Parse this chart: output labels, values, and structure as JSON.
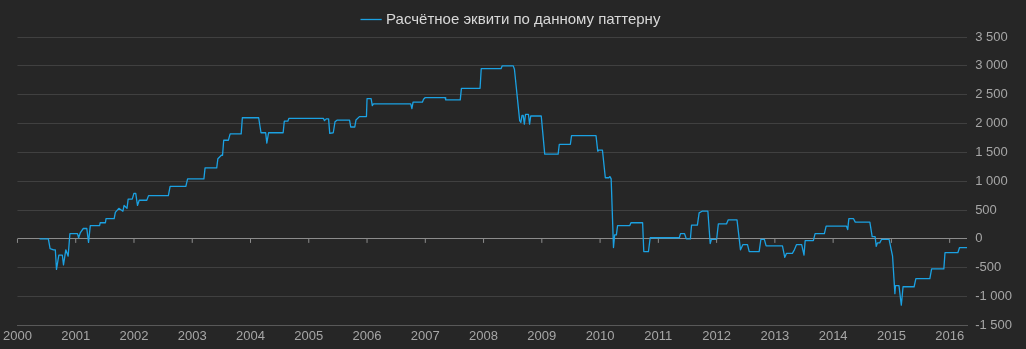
{
  "chart_data": {
    "type": "line",
    "legend": "top",
    "grid": "y",
    "marker": "none",
    "line_style": "solid",
    "xlim": [
      2000,
      2016.3
    ],
    "xticks": [
      2000,
      2001,
      2002,
      2003,
      2004,
      2005,
      2006,
      2007,
      2008,
      2009,
      2010,
      2011,
      2012,
      2013,
      2014,
      2015,
      2016
    ],
    "ylim": [
      -1500,
      3500
    ],
    "yticks": [
      {
        "value": -1500,
        "label": "-1 500"
      },
      {
        "value": -1000,
        "label": "-1 000"
      },
      -500,
      0,
      500,
      {
        "value": 1000,
        "label": "1 000"
      },
      {
        "value": 1500,
        "label": "1 500"
      },
      {
        "value": 2000,
        "label": "2 000"
      },
      {
        "value": 2500,
        "label": "2 500"
      },
      {
        "value": 3000,
        "label": "3 000"
      },
      {
        "value": 3500,
        "label": "3 500"
      }
    ],
    "series": [
      {
        "name": "Расчётное эквити по данному паттерну",
        "color": "#1ba1e2",
        "x": [
          2000.38,
          2000.53,
          2000.56,
          2000.62,
          2000.65,
          2000.67,
          2000.71,
          2000.77,
          2000.79,
          2000.83,
          2000.87,
          2000.9,
          2001.03,
          2001.05,
          2001.08,
          2001.13,
          2001.19,
          2001.22,
          2001.25,
          2001.41,
          2001.42,
          2001.51,
          2001.52,
          2001.66,
          2001.68,
          2001.74,
          2001.81,
          2001.83,
          2001.88,
          2001.9,
          2001.97,
          2002.0,
          2002.03,
          2002.06,
          2002.09,
          2002.22,
          2002.25,
          2002.59,
          2002.62,
          2002.89,
          2002.92,
          2003.2,
          2003.22,
          2003.42,
          2003.44,
          2003.5,
          2003.52,
          2003.54,
          2003.62,
          2003.65,
          2003.84,
          2003.86,
          2004.14,
          2004.18,
          2004.26,
          2004.28,
          2004.31,
          2004.56,
          2004.58,
          2004.64,
          2004.66,
          2005.25,
          2005.27,
          2005.3,
          2005.34,
          2005.36,
          2005.42,
          2005.45,
          2005.49,
          2005.7,
          2005.72,
          2005.79,
          2005.81,
          2005.87,
          2005.99,
          2006.0,
          2006.07,
          2006.09,
          2006.11,
          2006.75,
          2006.77,
          2006.79,
          2006.95,
          2006.97,
          2007.0,
          2007.34,
          2007.35,
          2007.6,
          2007.62,
          2007.94,
          2007.96,
          2008.3,
          2008.32,
          2008.51,
          2008.53,
          2008.62,
          2008.64,
          2008.66,
          2008.68,
          2008.7,
          2008.72,
          2008.77,
          2008.79,
          2008.81,
          2008.99,
          2009.05,
          2009.28,
          2009.3,
          2009.49,
          2009.51,
          2009.93,
          2009.96,
          2009.98,
          2010.04,
          2010.09,
          2010.15,
          2010.17,
          2010.19,
          2010.23,
          2010.25,
          2010.28,
          2010.3,
          2010.51,
          2010.53,
          2010.73,
          2010.75,
          2010.83,
          2010.86,
          2011.36,
          2011.38,
          2011.45,
          2011.48,
          2011.55,
          2011.57,
          2011.67,
          2011.7,
          2011.75,
          2011.85,
          2011.89,
          2011.91,
          2012.0,
          2012.03,
          2012.17,
          2012.2,
          2012.35,
          2012.41,
          2012.45,
          2012.53,
          2012.56,
          2012.73,
          2012.76,
          2012.82,
          2012.85,
          2013.13,
          2013.17,
          2013.2,
          2013.3,
          2013.33,
          2013.37,
          2013.46,
          2013.5,
          2013.52,
          2013.66,
          2013.69,
          2013.85,
          2013.88,
          2014.23,
          2014.25,
          2014.27,
          2014.35,
          2014.38,
          2014.63,
          2014.67,
          2014.72,
          2014.74,
          2014.76,
          2014.8,
          2014.83,
          2014.96,
          2015.02,
          2015.06,
          2015.07,
          2015.13,
          2015.17,
          2015.2,
          2015.39,
          2015.42,
          2015.66,
          2015.69,
          2015.9,
          2015.92,
          2016.14,
          2016.17,
          2016.3
        ],
        "values": [
          0,
          0,
          -170,
          -190,
          -190,
          -530,
          -280,
          -280,
          -450,
          -190,
          -300,
          90,
          90,
          20,
          110,
          180,
          180,
          -60,
          230,
          230,
          280,
          280,
          350,
          350,
          460,
          530,
          480,
          580,
          530,
          690,
          690,
          790,
          790,
          580,
          670,
          670,
          750,
          750,
          910,
          910,
          1040,
          1040,
          1230,
          1230,
          1390,
          1450,
          1450,
          1710,
          1710,
          1820,
          1820,
          2100,
          2100,
          1840,
          1840,
          1660,
          1840,
          1840,
          2040,
          2040,
          2090,
          2090,
          2050,
          2080,
          2080,
          1830,
          1840,
          2030,
          2060,
          2060,
          1940,
          1940,
          2060,
          2120,
          2120,
          2430,
          2430,
          2310,
          2340,
          2340,
          2260,
          2370,
          2370,
          2420,
          2450,
          2450,
          2410,
          2410,
          2610,
          2610,
          2950,
          2950,
          3000,
          3000,
          2940,
          2050,
          2020,
          2140,
          2140,
          1990,
          2160,
          2160,
          1990,
          2130,
          2130,
          1470,
          1470,
          1640,
          1640,
          1790,
          1790,
          1520,
          1540,
          1540,
          1060,
          1060,
          1080,
          1040,
          -150,
          70,
          70,
          230,
          230,
          280,
          280,
          -220,
          -220,
          20,
          20,
          90,
          90,
          0,
          0,
          240,
          240,
          450,
          480,
          480,
          -80,
          -10,
          -10,
          260,
          260,
          330,
          330,
          -190,
          -100,
          -100,
          -220,
          -220,
          -10,
          -10,
          -120,
          -120,
          -320,
          -250,
          -250,
          -200,
          -100,
          -100,
          -280,
          -30,
          -30,
          90,
          90,
          220,
          220,
          160,
          350,
          350,
          290,
          290,
          40,
          40,
          -130,
          -70,
          -70,
          -10,
          -10,
          -300,
          -950,
          -810,
          -810,
          -1150,
          -830,
          -830,
          -690,
          -690,
          -520,
          -520,
          -240,
          -240,
          -150,
          -150
        ]
      }
    ]
  }
}
